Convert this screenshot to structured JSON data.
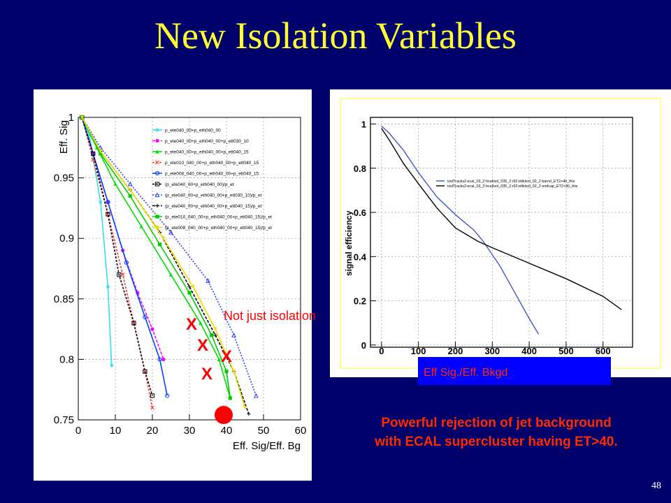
{
  "slide": {
    "title": "New Isolation Variables",
    "page_number": "48",
    "caption": "Powerful rejection of jet background with ECAL supercluster having ET>40.",
    "note": "Not just isolation",
    "bkgd_label": "Eff Sig./Eff. Bkgd",
    "markers": [
      "X",
      "X",
      "X",
      "X"
    ]
  },
  "colors": {
    "background": "#00006a",
    "title": "#ffff33",
    "caption": "#ff2a00",
    "marker": "#ff0000"
  },
  "chart_data": [
    {
      "type": "line",
      "xlabel": "Eff. Sig/Eff. Bg",
      "ylabel": "Eff. Sig",
      "xlim": [
        0,
        60
      ],
      "ylim": [
        0.75,
        1
      ],
      "x_ticks": [
        0,
        10,
        20,
        30,
        40,
        50,
        60
      ],
      "y_ticks": [
        0.75,
        0.8,
        0.85,
        0.9,
        0.95,
        1
      ],
      "y_tick_labels": [
        "0.75",
        "0.8",
        "0.85",
        "0.9",
        "0.95",
        "1"
      ],
      "series": [
        {
          "name": "p_ete040_00+p_eth040_00",
          "color": "#33ddee",
          "dash": "",
          "marker": "star",
          "points": [
            [
              1,
              1
            ],
            [
              3,
              0.985
            ],
            [
              6,
              0.93
            ],
            [
              8,
              0.86
            ],
            [
              9,
              0.795
            ]
          ]
        },
        {
          "name": "p_ete040_00+p_eth040_00+p_ett030_10",
          "color": "#ff00ff",
          "dash": "4,2",
          "marker": "circle",
          "points": [
            [
              1,
              1
            ],
            [
              4,
              0.97
            ],
            [
              8,
              0.93
            ],
            [
              12,
              0.89
            ],
            [
              16,
              0.855
            ],
            [
              20,
              0.825
            ],
            [
              23,
              0.8
            ]
          ]
        },
        {
          "name": "p_ete040_00+p_eth040_00+p_ett040_15",
          "color": "#00dd00",
          "dash": "",
          "marker": "triangle",
          "points": [
            [
              1,
              1
            ],
            [
              5,
              0.975
            ],
            [
              10,
              0.945
            ],
            [
              17,
              0.91
            ],
            [
              25,
              0.87
            ],
            [
              33,
              0.83
            ],
            [
              38,
              0.8
            ],
            [
              41,
              0.768
            ]
          ]
        },
        {
          "name": "p_ete010_040_00+p_eth040_00+p_ett040_15",
          "color": "#ff3333",
          "dash": "3,2",
          "marker": "x",
          "points": [
            [
              1,
              1
            ],
            [
              4,
              0.965
            ],
            [
              8,
              0.92
            ],
            [
              12,
              0.87
            ],
            [
              15,
              0.83
            ],
            [
              18,
              0.79
            ],
            [
              20,
              0.76
            ]
          ]
        },
        {
          "name": "p_ete008_040_00+p_eth040_00+p_ett040_15",
          "color": "#0044ff",
          "dash": "",
          "marker": "circle-open",
          "points": [
            [
              1,
              1
            ],
            [
              4,
              0.97
            ],
            [
              8,
              0.93
            ],
            [
              13,
              0.88
            ],
            [
              18,
              0.835
            ],
            [
              22,
              0.8
            ],
            [
              24,
              0.77
            ]
          ]
        },
        {
          "name": "(p_ete040_00+p_eth040_00)/p_et",
          "color": "#000000",
          "dash": "3,2",
          "marker": "square-open",
          "points": [
            [
              1,
              1
            ],
            [
              4,
              0.97
            ],
            [
              8,
              0.92
            ],
            [
              11,
              0.87
            ],
            [
              15,
              0.83
            ],
            [
              18,
              0.79
            ],
            [
              20,
              0.77
            ]
          ]
        },
        {
          "name": "(p_ete040_00+p_eth040_00+p_ett030_10)/p_et",
          "color": "#3344ff",
          "dash": "2,2",
          "marker": "triangle-open",
          "points": [
            [
              1,
              1
            ],
            [
              6,
              0.975
            ],
            [
              14,
              0.945
            ],
            [
              25,
              0.905
            ],
            [
              35,
              0.865
            ],
            [
              42,
              0.82
            ],
            [
              48,
              0.77
            ]
          ]
        },
        {
          "name": "(p_ete040_00+p_eth040_00+p_ett040_15)/p_et",
          "color": "#000000",
          "dash": "4,2",
          "marker": "cross",
          "points": [
            [
              1,
              1
            ],
            [
              6,
              0.972
            ],
            [
              14,
              0.94
            ],
            [
              22,
              0.905
            ],
            [
              30,
              0.86
            ],
            [
              37,
              0.82
            ],
            [
              42,
              0.79
            ],
            [
              46,
              0.755
            ]
          ]
        },
        {
          "name": "(p_ete010_040_00+p_eth040_00+p_ett040_15)/p_et",
          "color": "#00cc00",
          "dash": "",
          "marker": "square",
          "points": [
            [
              1,
              1
            ],
            [
              6,
              0.97
            ],
            [
              14,
              0.935
            ],
            [
              22,
              0.895
            ],
            [
              30,
              0.855
            ],
            [
              36,
              0.82
            ],
            [
              40,
              0.79
            ],
            [
              41,
              0.768
            ]
          ]
        },
        {
          "name": "(p_ete008_040_00+p_eth040_00+p_ett040_15)/p_et",
          "color": "#eedd00",
          "dash": "",
          "marker": "triangle-down",
          "points": [
            [
              1,
              1
            ],
            [
              6,
              0.972
            ],
            [
              14,
              0.94
            ],
            [
              23,
              0.9
            ],
            [
              31,
              0.86
            ],
            [
              37,
              0.825
            ],
            [
              42,
              0.79
            ],
            [
              45,
              0.76
            ]
          ]
        }
      ]
    },
    {
      "type": "line",
      "xlabel": "",
      "ylabel": "signal efficiency",
      "xlim": [
        -30,
        680
      ],
      "ylim": [
        -0.01,
        1.03
      ],
      "x_ticks": [
        0,
        100,
        200,
        300,
        400,
        500,
        600
      ],
      "y_ticks": [
        0,
        0.2,
        0.4,
        0.6,
        0.8,
        1
      ],
      "y_tick_labels": [
        "0",
        "0.2",
        "0.4",
        "0.6",
        "0.8",
        "1"
      ],
      "series": [
        {
          "name": "isolTracks2:ecal_03_2:hcalIsol_035_2:r92:ettklsol_02_2 barrel_ET2>40_this",
          "color": "#4455cc",
          "points": [
            [
              0,
              0.99
            ],
            [
              20,
              0.96
            ],
            [
              60,
              0.88
            ],
            [
              100,
              0.78
            ],
            [
              150,
              0.67
            ],
            [
              200,
              0.59
            ],
            [
              250,
              0.52
            ],
            [
              275,
              0.47
            ],
            [
              320,
              0.36
            ],
            [
              360,
              0.24
            ],
            [
              400,
              0.12
            ],
            [
              425,
              0.05
            ]
          ]
        },
        {
          "name": "isolTracks2:ecal_03_2:hcalIsol_035_2:r92:ettklsol_02_2 endcap_ET2>40_this",
          "color": "#000000",
          "points": [
            [
              0,
              0.98
            ],
            [
              20,
              0.93
            ],
            [
              60,
              0.82
            ],
            [
              100,
              0.73
            ],
            [
              150,
              0.62
            ],
            [
              200,
              0.53
            ],
            [
              260,
              0.47
            ],
            [
              300,
              0.44
            ],
            [
              400,
              0.37
            ],
            [
              500,
              0.3
            ],
            [
              600,
              0.22
            ],
            [
              650,
              0.16
            ]
          ]
        }
      ]
    }
  ]
}
